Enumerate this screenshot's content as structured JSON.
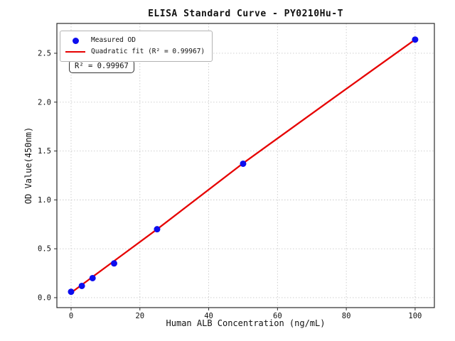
{
  "chart_data": {
    "type": "scatter",
    "title": "ELISA Standard Curve - PY0210Hu-T",
    "xlabel": "Human ALB Concentration (ng/mL)",
    "ylabel": "OD Value(450nm)",
    "xlim": [
      -4.13,
      105.6
    ],
    "ylim": [
      -0.102,
      2.805
    ],
    "x_ticks": [
      0,
      20,
      40,
      60,
      80,
      100
    ],
    "x_tick_labels": [
      "0",
      "20",
      "40",
      "60",
      "80",
      "100"
    ],
    "y_ticks": [
      0.0,
      0.5,
      1.0,
      1.5,
      2.0,
      2.5
    ],
    "y_tick_labels": [
      "0.0",
      "0.5",
      "1.0",
      "1.5",
      "2.0",
      "2.5"
    ],
    "grid": true,
    "legend_position": "upper left",
    "series": [
      {
        "name": "Measured OD",
        "type": "scatter",
        "marker": "circle",
        "color": "#0d0dee",
        "points": [
          [
            0,
            0.06
          ],
          [
            3.125,
            0.12
          ],
          [
            6.25,
            0.2
          ],
          [
            12.5,
            0.35
          ],
          [
            25,
            0.7
          ],
          [
            50,
            1.37
          ],
          [
            100,
            2.64
          ]
        ]
      },
      {
        "name": "Quadratic fit (R² = 0.99967)",
        "type": "line",
        "color": "#e60000",
        "points": [
          [
            0,
            0.05
          ],
          [
            12.5,
            0.375
          ],
          [
            25,
            0.7
          ],
          [
            50,
            1.375
          ],
          [
            75,
            2.01
          ],
          [
            100,
            2.64
          ]
        ]
      }
    ],
    "annotation": {
      "text": "R² = 0.99967"
    },
    "r_squared": 0.99967
  },
  "colors": {
    "marker": "#0d0dee",
    "fit_line": "#e60000",
    "grid": "#c9c9c9",
    "spine": "#2b2b2b",
    "text": "#111111",
    "legend_border": "#b3b3b3",
    "annotation_border": "#333333"
  }
}
